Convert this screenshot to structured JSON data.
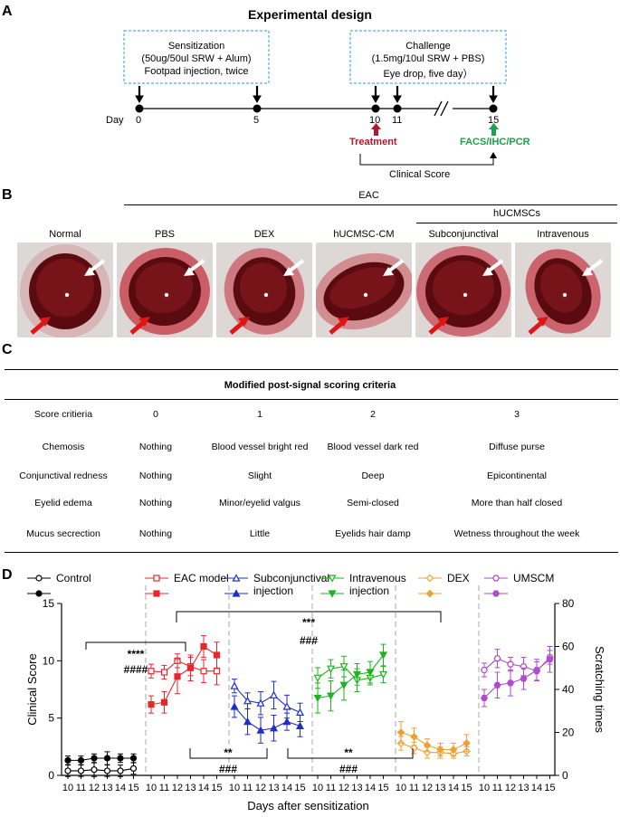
{
  "panelA": {
    "letter": "A",
    "title": "Experimental design",
    "sensitization": {
      "title": "Sensitization",
      "dose": "(50ug/50ul SRW + Alum)",
      "method": "Footpad injection, twice"
    },
    "challenge": {
      "title": "Challenge",
      "dose": "(1.5mg/10ul SRW + PBS)",
      "method": "Eye drop, five day）"
    },
    "day_label": "Day",
    "days": [
      "0",
      "5",
      "10",
      "11",
      "15"
    ],
    "treatment": "Treatment",
    "facs": "FACS/IHC/PCR",
    "clinical_score": "Clinical Score",
    "colors": {
      "treatment": "#b2182b",
      "facs": "#1aa34a",
      "box": "#4ab3e0"
    }
  },
  "panelB": {
    "letter": "B",
    "eac": "EAC",
    "hucmscs": "hUCMSCs",
    "labels": [
      "Normal",
      "PBS",
      "DEX",
      "hUCMSC-CM",
      "Subconjunctival",
      "Intravenous"
    ]
  },
  "panelC": {
    "letter": "C",
    "title": "Modified post-signal scoring criteria",
    "header": [
      "Score critieria",
      "0",
      "1",
      "2",
      "3"
    ],
    "rows": [
      [
        "Chemosis",
        "Nothing",
        "Blood vessel bright red",
        "Blood vessel dark red",
        "Diffuse purse"
      ],
      [
        "Conjunctival redness",
        "Nothing",
        "Slight",
        "Deep",
        "Epicontinental"
      ],
      [
        "Eyelid edema",
        "Nothing",
        "Minor/eyelid valgus",
        "Semi-closed",
        "More than half closed"
      ],
      [
        "Mucus secrection",
        "Nothing",
        "Little",
        "Eyelids hair damp",
        "Wetness throughout the week"
      ]
    ]
  },
  "panelD": {
    "letter": "D",
    "legend": [
      {
        "name": "Control",
        "color": "#000000",
        "marker": "circle"
      },
      {
        "name": "EAC model",
        "color": "#e8262b",
        "marker": "square"
      },
      {
        "name": "Subconjunctival",
        "name2": "injection",
        "color": "#1f2ec8",
        "marker": "triangle"
      },
      {
        "name": "Intravenous",
        "name2": "injection",
        "color": "#1fb31f",
        "marker": "triangle-down"
      },
      {
        "name": "DEX",
        "color": "#f0a030",
        "marker": "diamond"
      },
      {
        "name": "UMSCM",
        "color": "#b04ad0",
        "marker": "hexagon"
      }
    ],
    "sig": {
      "top_star": "***",
      "top_hash": "###",
      "left_star": "****",
      "left_hash": "####",
      "mid1_star": "**",
      "mid1_hash": "###",
      "mid2_star": "**",
      "mid2_hash": "###"
    }
  },
  "chart_data": {
    "type": "line",
    "title": "",
    "xlabel": "Days after sensitization",
    "ylabel": "Clinical Score",
    "y2label": "Scratching times",
    "ylim": [
      0,
      15
    ],
    "y2lim": [
      0,
      80
    ],
    "yticks": [
      "0",
      "5",
      "10",
      "15"
    ],
    "y2ticks": [
      "0",
      "20",
      "40",
      "60",
      "80"
    ],
    "categories": [
      "10",
      "11",
      "12",
      "13",
      "14",
      "15"
    ],
    "groups": [
      {
        "name": "Control",
        "color": "#000000",
        "marker": "circle",
        "score": [
          0.4,
          0.4,
          0.5,
          0.4,
          0.4,
          0.6
        ],
        "score_err": [
          0.5,
          0.5,
          0.6,
          0.5,
          0.5,
          0.5
        ],
        "scratch": [
          7,
          7,
          8,
          8,
          8,
          8
        ],
        "scratch_err": [
          2,
          2,
          2,
          3,
          2,
          2
        ]
      },
      {
        "name": "EAC model",
        "color": "#e8262b",
        "marker": "square",
        "score": [
          9.1,
          9.0,
          10.0,
          9.5,
          9.1,
          9.1
        ],
        "score_err": [
          0.6,
          0.6,
          0.6,
          0.8,
          1.0,
          1.2
        ],
        "scratch": [
          33,
          34,
          46,
          50,
          60,
          56
        ],
        "scratch_err": [
          4,
          5,
          8,
          6,
          5,
          6
        ]
      },
      {
        "name": "Subconjunctival injection",
        "color": "#1f2ec8",
        "marker": "triangle",
        "score": [
          7.8,
          6.5,
          6.3,
          7.0,
          6.0,
          5.5
        ],
        "score_err": [
          0.6,
          0.7,
          1.0,
          1.2,
          1.0,
          0.8
        ],
        "scratch": [
          32,
          25,
          21,
          22,
          25,
          23
        ],
        "scratch_err": [
          5,
          6,
          6,
          6,
          4,
          5
        ]
      },
      {
        "name": "Intravenous injection",
        "color": "#1fb31f",
        "marker": "triangle-down",
        "score": [
          8.5,
          9.3,
          9.5,
          8.3,
          8.5,
          8.8
        ],
        "score_err": [
          0.9,
          0.8,
          0.9,
          1.0,
          0.6,
          0.7
        ],
        "scratch": [
          36,
          37,
          42,
          47,
          48,
          56
        ],
        "scratch_err": [
          7,
          7,
          7,
          5,
          5,
          5
        ]
      },
      {
        "name": "DEX",
        "color": "#f0a030",
        "marker": "diamond",
        "score": [
          2.8,
          2.4,
          2.0,
          2.0,
          1.9,
          2.1
        ],
        "score_err": [
          0.6,
          0.5,
          0.5,
          0.5,
          0.4,
          0.4
        ],
        "scratch": [
          20,
          18,
          14,
          12,
          12,
          15
        ],
        "scratch_err": [
          5,
          4,
          3,
          3,
          3,
          4
        ]
      },
      {
        "name": "UMSCM",
        "color": "#b04ad0",
        "marker": "hexagon",
        "score": [
          9.2,
          10.2,
          9.7,
          9.5,
          9.1,
          10.3
        ],
        "score_err": [
          0.6,
          0.8,
          0.6,
          0.8,
          0.8,
          0.6
        ],
        "scratch": [
          36,
          42,
          43,
          45,
          49,
          54
        ],
        "scratch_err": [
          4,
          6,
          6,
          5,
          5,
          6
        ]
      }
    ]
  }
}
